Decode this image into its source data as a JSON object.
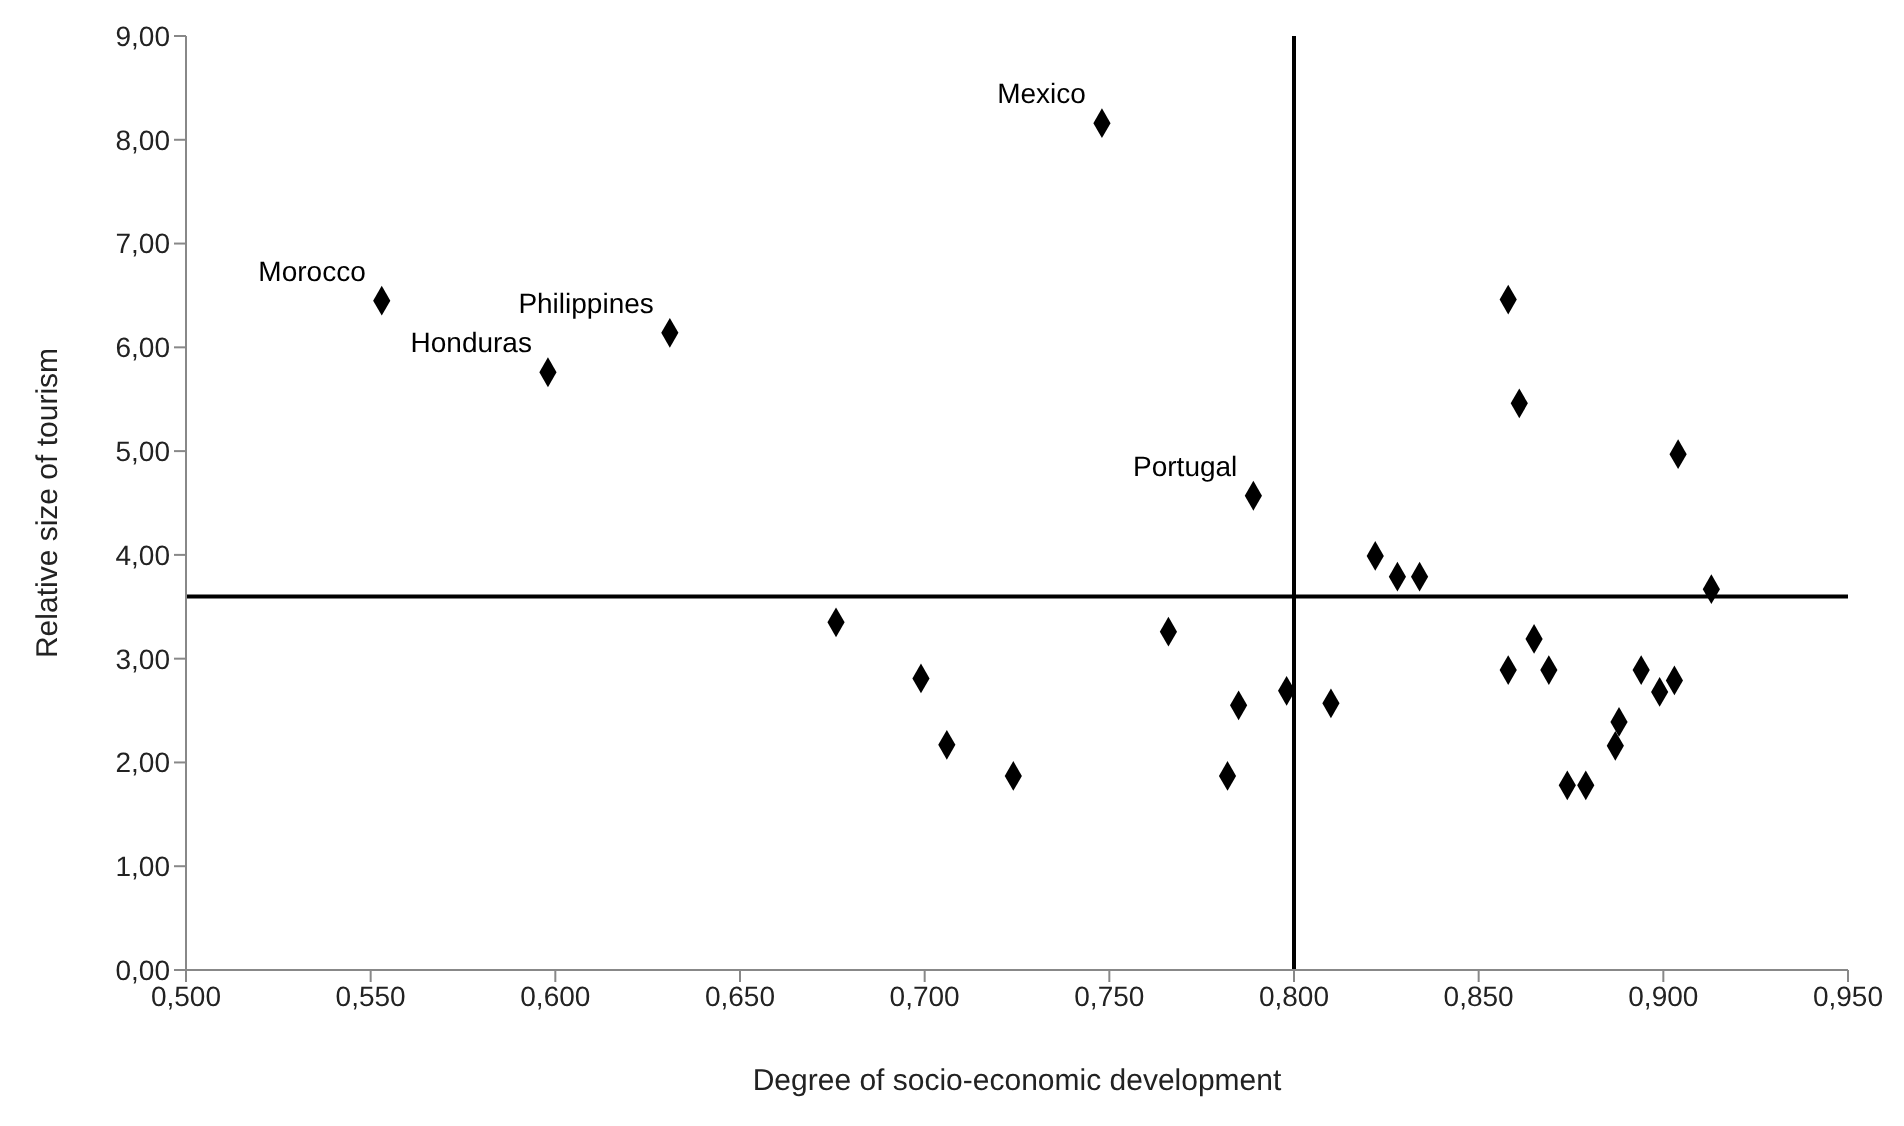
{
  "chart_data": {
    "type": "scatter",
    "xlabel": "Degree of socio-economic development",
    "ylabel": "Relative size of tourism",
    "x": [
      0.553,
      0.598,
      0.631,
      0.748,
      0.789,
      0.858,
      0.861,
      0.904,
      0.822,
      0.828,
      0.834,
      0.913,
      0.766,
      0.865,
      0.858,
      0.869,
      0.894,
      0.903,
      0.899,
      0.798,
      0.785,
      0.81,
      0.888,
      0.887,
      0.782,
      0.874,
      0.879,
      0.676,
      0.699,
      0.706,
      0.724
    ],
    "values": [
      6.45,
      5.76,
      6.14,
      8.16,
      4.57,
      6.46,
      5.46,
      4.97,
      3.99,
      3.79,
      3.79,
      3.67,
      3.26,
      3.19,
      2.89,
      2.89,
      2.89,
      2.79,
      2.68,
      2.69,
      2.55,
      2.57,
      2.39,
      2.16,
      1.87,
      1.78,
      1.78,
      3.35,
      2.81,
      2.17,
      1.87
    ],
    "color": "#000000",
    "marker": "diamond",
    "xlim": [
      0.5,
      0.95
    ],
    "xticks": [
      {
        "value": 0.5,
        "label": "0,500"
      },
      {
        "value": 0.55,
        "label": "0,550"
      },
      {
        "value": 0.6,
        "label": "0,600"
      },
      {
        "value": 0.65,
        "label": "0,650"
      },
      {
        "value": 0.7,
        "label": "0,700"
      },
      {
        "value": 0.75,
        "label": "0,750"
      },
      {
        "value": 0.8,
        "label": "0,800"
      },
      {
        "value": 0.85,
        "label": "0,850"
      },
      {
        "value": 0.9,
        "label": "0,900"
      },
      {
        "value": 0.95,
        "label": "0,950"
      }
    ],
    "ylim": [
      0,
      9
    ],
    "yticks": [
      {
        "value": 0,
        "label": "0,00"
      },
      {
        "value": 1,
        "label": "1,00"
      },
      {
        "value": 2,
        "label": "2,00"
      },
      {
        "value": 3,
        "label": "3,00"
      },
      {
        "value": 4,
        "label": "4,00"
      },
      {
        "value": 5,
        "label": "5,00"
      },
      {
        "value": 6,
        "label": "6,00"
      },
      {
        "value": 7,
        "label": "7,00"
      },
      {
        "value": 8,
        "label": "8,00"
      },
      {
        "value": 9,
        "label": "9,00"
      }
    ],
    "ref_lines": [
      {
        "axis": "x",
        "value": 0.8,
        "color": "#000000"
      },
      {
        "axis": "y",
        "value": 3.6,
        "color": "#000000"
      }
    ],
    "annotations": [
      {
        "text": "Morocco",
        "x": 0.553,
        "y": 6.45
      },
      {
        "text": "Honduras",
        "x": 0.598,
        "y": 5.76
      },
      {
        "text": "Philippines",
        "x": 0.631,
        "y": 6.14
      },
      {
        "text": "Mexico",
        "x": 0.748,
        "y": 8.16
      },
      {
        "text": "Portugal",
        "x": 0.789,
        "y": 4.57
      }
    ]
  }
}
